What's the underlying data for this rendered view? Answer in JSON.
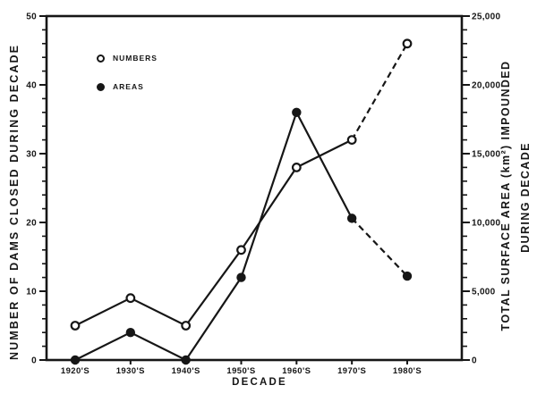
{
  "chart_data": {
    "type": "line",
    "title": "",
    "xlabel": "DECADE",
    "grid": "off",
    "categories": [
      "1920'S",
      "1930'S",
      "1940'S",
      "1950'S",
      "1960'S",
      "1970'S",
      "1980'S"
    ],
    "left_axis": {
      "label": "NUMBER OF DAMS CLOSED DURING DECADE",
      "min": 0,
      "max": 50,
      "major_step": 10,
      "minor_step": 2,
      "tick_labels": [
        "0",
        "10",
        "20",
        "30",
        "40",
        "50"
      ]
    },
    "right_axis": {
      "label_line1": "TOTAL SURFACE AREA (km²) IMPOUNDED",
      "label_line2": "DURING DECADE",
      "min": 0,
      "max": 25000,
      "major_step": 5000,
      "minor_step": 1000,
      "tick_labels": [
        "0",
        "5,000",
        "10,000",
        "15,000",
        "20,000",
        "25,000"
      ]
    },
    "series": [
      {
        "name": "NUMBERS",
        "axis": "left",
        "marker": "open-circle",
        "line": "solid-then-dashed",
        "dashed_from_index": 5,
        "values": [
          5,
          9,
          5,
          16,
          28,
          32,
          46
        ]
      },
      {
        "name": "AREAS",
        "axis": "right",
        "marker": "filled-circle",
        "line": "solid-then-dashed",
        "dashed_from_index": 5,
        "values": [
          0,
          2000,
          0,
          6000,
          18000,
          10300,
          6100
        ]
      }
    ],
    "legend": {
      "position": "upper-left-inside",
      "items": [
        {
          "label": "NUMBERS",
          "marker": "open-circle"
        },
        {
          "label": "AREAS",
          "marker": "filled-circle"
        }
      ]
    },
    "colors": {
      "ink": "#161616",
      "background": "#ffffff",
      "open_marker_fill": "#ffffff"
    }
  }
}
